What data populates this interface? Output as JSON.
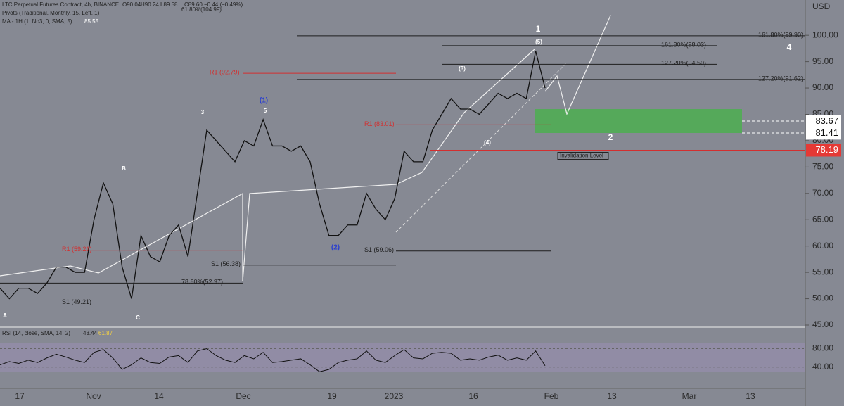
{
  "header": {
    "symbol": "LTC Perpetual Futures Contract, 4h, BINANCE",
    "open": "O90.04",
    "high": "H90.24",
    "low": "L89.58",
    "close": "C89.60",
    "change": "−0.44 (−0.49%)",
    "pivots": "Pivots (Traditional, Monthly, 15, Left, 1)",
    "ma": "MA - 1H (1, No3, 0, SMA, 5)",
    "ma_value": "85.55",
    "fib_top": "61.80%(104.99)"
  },
  "currency": "USD",
  "price_axis": {
    "ylim": [
      44.6,
      106.7
    ],
    "ticks": [
      {
        "value": 45,
        "label": "45.00"
      },
      {
        "value": 50,
        "label": "50.00"
      },
      {
        "value": 55,
        "label": "55.00"
      },
      {
        "value": 60,
        "label": "60.00"
      },
      {
        "value": 65,
        "label": "65.00"
      },
      {
        "value": 70,
        "label": "70.00"
      },
      {
        "value": 75,
        "label": "75.00"
      },
      {
        "value": 80,
        "label": "80.00"
      },
      {
        "value": 85,
        "label": "85.00"
      },
      {
        "value": 90,
        "label": "90.00"
      },
      {
        "value": 95,
        "label": "95.00"
      },
      {
        "value": 100,
        "label": "100.00"
      }
    ]
  },
  "time_axis": {
    "labels": [
      "17",
      "Nov",
      "14",
      "Dec",
      "19",
      "2023",
      "16",
      "Feb",
      "13",
      "Mar",
      "13"
    ]
  },
  "price": {
    "color": "#111111",
    "values": [
      52,
      50,
      52,
      52,
      51,
      53,
      56,
      56,
      55,
      55,
      65,
      72,
      68,
      56,
      50,
      62,
      58,
      57,
      62,
      64,
      58,
      70,
      82,
      80,
      78,
      76,
      80,
      79,
      84,
      79,
      79,
      78,
      79,
      76,
      68,
      62,
      62,
      64,
      64,
      70,
      67,
      65,
      69,
      78,
      76,
      76,
      82,
      85,
      88,
      86,
      86,
      85,
      87,
      89,
      88,
      89,
      88,
      97,
      90
    ]
  },
  "levels": [
    {
      "label": "161.80%(99.90)",
      "value": 99.9,
      "color": "#1e1e1e"
    },
    {
      "label": "161.80%(98.03)",
      "value": 98.03,
      "color": "#1e1e1e"
    },
    {
      "label": "127.20%(94.50)",
      "value": 94.5,
      "color": "#1e1e1e"
    },
    {
      "label": "127.20%(91.62)",
      "value": 91.62,
      "color": "#1e1e1e"
    },
    {
      "label": "R1 (92.79)",
      "value": 92.79,
      "color": "#d32f2f"
    },
    {
      "label": "R1 (83.01)",
      "value": 83.01,
      "color": "#d32f2f"
    },
    {
      "label": "S1 (59.06)",
      "value": 59.06,
      "color": "#1e1e1e"
    },
    {
      "label": "S1 (56.38)",
      "value": 56.38,
      "color": "#1e1e1e"
    },
    {
      "label": "S1 (49.21)",
      "value": 49.21,
      "color": "#1e1e1e"
    },
    {
      "label": "R1 (59.21)",
      "value": 59.21,
      "color": "#d32f2f"
    },
    {
      "label": "78.60%(52.97)",
      "value": 52.97,
      "color": "#1e1e1e"
    },
    {
      "label": "Invalidation Level",
      "value": 78.19,
      "color": "#d32f2f"
    }
  ],
  "price_tags": [
    {
      "value": 83.67,
      "color": "#ffffff"
    },
    {
      "value": 81.41,
      "color": "#ffffff"
    },
    {
      "value": 78.19,
      "color": "#e53935"
    }
  ],
  "waves": [
    "1",
    "4",
    "2",
    "(1)",
    "(2)",
    "5",
    "3",
    "B",
    "A",
    "C",
    "(5)",
    "(3)",
    "(4)"
  ],
  "rsi": {
    "title": "RSI (14, close, SMA, 14, 2)",
    "value": "43.44",
    "ma_value": "61.87",
    "ylim": [
      0,
      125
    ],
    "ticks": [
      {
        "value": 80,
        "label": "80.00"
      },
      {
        "value": 40,
        "label": "40.00"
      }
    ],
    "color": "#111111",
    "values": [
      45,
      52,
      48,
      55,
      50,
      60,
      68,
      62,
      55,
      50,
      72,
      78,
      60,
      35,
      45,
      60,
      50,
      48,
      62,
      65,
      50,
      75,
      80,
      65,
      55,
      50,
      65,
      58,
      72,
      50,
      52,
      55,
      58,
      45,
      30,
      35,
      50,
      55,
      58,
      75,
      55,
      50,
      65,
      78,
      60,
      58,
      70,
      72,
      70,
      55,
      58,
      55,
      62,
      66,
      55,
      60,
      55,
      75,
      43
    ]
  }
}
